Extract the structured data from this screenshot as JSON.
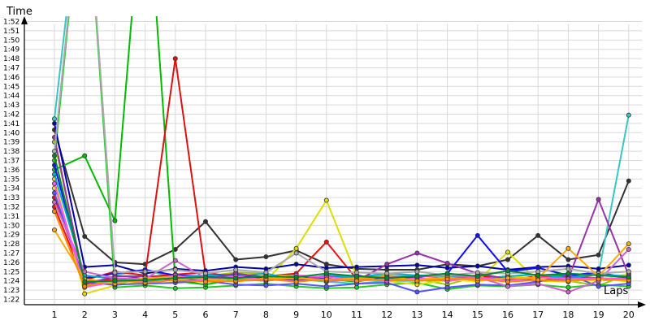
{
  "chart_data": {
    "type": "line",
    "xlabel": "Laps",
    "ylabel": "Time",
    "x": [
      1,
      2,
      3,
      4,
      5,
      6,
      7,
      8,
      9,
      10,
      11,
      12,
      13,
      14,
      15,
      16,
      17,
      18,
      19,
      20
    ],
    "x_tick_labels": [
      "1",
      "2",
      "3",
      "4",
      "5",
      "6",
      "7",
      "8",
      "9",
      "10",
      "11",
      "12",
      "13",
      "14",
      "15",
      "16",
      "17",
      "18",
      "19",
      "20"
    ],
    "y_unit": "seconds",
    "ylim": [
      80,
      113
    ],
    "y_tick_labels": [
      "1:22",
      "1:23",
      "1:24",
      "1:25",
      "1:26",
      "1:27",
      "1:28",
      "1:29",
      "1:30",
      "1:31",
      "1:32",
      "1:33",
      "1:34",
      "1:35",
      "1:36",
      "1:37",
      "1:38",
      "1:39",
      "1:40",
      "1:41",
      "1:42",
      "1:43",
      "1:44",
      "1:45",
      "1:46",
      "1:47",
      "1:48",
      "1:49",
      "1:50",
      "1:51",
      "1:52"
    ],
    "y_tick_values": [
      82,
      83,
      84,
      85,
      86,
      87,
      88,
      89,
      90,
      91,
      92,
      93,
      94,
      95,
      96,
      97,
      98,
      99,
      100,
      101,
      102,
      103,
      104,
      105,
      106,
      107,
      108,
      109,
      110,
      111,
      112
    ],
    "grid": true,
    "series": [
      {
        "color": "#333333",
        "values": [
          100.3,
          88.8,
          86.0,
          85.8,
          87.4,
          90.4,
          86.3,
          86.6,
          87.3,
          85.8,
          85.3,
          85.2,
          85.2,
          85.8,
          85.6,
          86.3,
          88.9,
          86.3,
          86.8,
          94.8
        ]
      },
      {
        "color": "#39c6c6",
        "values": [
          101.5,
          130,
          84.6,
          85.2,
          84.3,
          84.1,
          84.0,
          84.1,
          84.2,
          83.9,
          83.7,
          84.0,
          84.0,
          84.2,
          84.1,
          84.3,
          84.2,
          84.5,
          84.7,
          101.9
        ]
      },
      {
        "color": "#99cc00",
        "values": [
          99.0,
          84.0,
          83.5,
          84.5,
          84.5,
          84.5,
          84.9,
          84.8,
          84.1,
          84.0,
          84.3,
          84.6,
          84.2,
          83.6,
          84.5,
          84.2,
          84.5,
          84.0,
          83.5,
          84.7
        ]
      },
      {
        "color": "#22cc22",
        "values": [
          97.0,
          130,
          83.3,
          83.5,
          83.2,
          83.3,
          83.5,
          83.7,
          83.4,
          83.2,
          83.3,
          83.6,
          83.8,
          83.1,
          83.5,
          83.4,
          83.6,
          83.3,
          83.6,
          83.4
        ]
      },
      {
        "color": "#00bb00",
        "values": [
          96.0,
          97.5,
          90.5,
          130,
          84.0,
          83.6,
          84.2,
          84.4,
          84.6,
          84.2,
          83.9,
          84.5,
          84.0,
          84.3,
          84.3,
          84.0,
          84.4,
          84.7,
          84.2,
          84.3
        ]
      },
      {
        "color": "#ee1111",
        "values": [
          92.0,
          83.9,
          84.2,
          84.4,
          84.7,
          84.9,
          84.4,
          84.5,
          84.8,
          88.2,
          84.2,
          84.4,
          84.4,
          84.3,
          84.6,
          84.1,
          84.5,
          84.2,
          84.1,
          84.2
        ]
      },
      {
        "color": "#dd1111",
        "values": [
          93.0,
          84.1,
          85.0,
          84.6,
          108.0,
          84.7,
          84.3,
          84.1,
          84.3,
          84.5,
          84.4,
          84.3,
          84.2,
          84.0,
          84.3,
          84.4,
          84.0,
          84.5,
          84.3,
          84.0
        ]
      },
      {
        "color": "#dddd00",
        "values": [
          95.0,
          82.6,
          83.5,
          83.9,
          84.2,
          84.1,
          84.3,
          84.0,
          87.5,
          92.7,
          84.5,
          84.0,
          83.6,
          84.1,
          84.0,
          87.1,
          84.0,
          83.9,
          84.3,
          83.9
        ]
      },
      {
        "color": "#eeee00",
        "values": [
          94.0,
          83.5,
          83.8,
          84.4,
          83.9,
          84.5,
          84.1,
          84.6,
          84.5,
          84.3,
          84.6,
          84.1,
          84.4,
          84.2,
          83.9,
          84.6,
          84.2,
          84.1,
          84.0,
          84.8
        ]
      },
      {
        "color": "#0000aa",
        "values": [
          101.0,
          85.5,
          85.7,
          84.8,
          85.3,
          85.1,
          85.5,
          85.3,
          85.8,
          85.4,
          85.5,
          85.6,
          85.7,
          85.4,
          85.6,
          85.2,
          85.5,
          85.6,
          85.3,
          85.7
        ]
      },
      {
        "color": "#1111ee",
        "values": [
          96.5,
          84.3,
          84.8,
          85.2,
          84.6,
          84.5,
          84.7,
          84.2,
          84.5,
          84.3,
          84.6,
          84.1,
          84.4,
          84.8,
          88.9,
          85.0,
          85.4,
          84.6,
          84.9,
          84.3
        ]
      },
      {
        "color": "#5555ff",
        "values": [
          93.5,
          83.8,
          83.6,
          83.7,
          83.8,
          84.0,
          83.6,
          83.5,
          83.7,
          83.4,
          83.7,
          83.8,
          82.8,
          83.3,
          83.6,
          83.5,
          83.9,
          84.7,
          83.4,
          83.7
        ]
      },
      {
        "color": "#00aadd",
        "values": [
          95.5,
          84.6,
          84.2,
          83.9,
          84.4,
          84.6,
          84.5,
          84.8,
          84.1,
          84.6,
          84.4,
          84.8,
          84.6,
          84.5,
          84.2,
          84.5,
          84.7,
          84.3,
          84.7,
          84.5
        ]
      },
      {
        "color": "#9933aa",
        "values": [
          99.5,
          83.6,
          84.5,
          84.5,
          84.0,
          84.2,
          84.8,
          84.4,
          84.0,
          84.5,
          84.0,
          85.8,
          87.0,
          85.9,
          84.8,
          84.2,
          84.0,
          84.2,
          92.8,
          84.6
        ]
      },
      {
        "color": "#cc66cc",
        "values": [
          92.5,
          85.0,
          84.3,
          84.2,
          86.2,
          84.3,
          84.2,
          84.0,
          84.4,
          84.0,
          84.1,
          84.5,
          84.5,
          84.6,
          84.4,
          83.4,
          83.7,
          82.8,
          84.0,
          87.4
        ]
      },
      {
        "color": "#ff55ff",
        "values": [
          94.5,
          83.3,
          83.9,
          84.0,
          84.6,
          84.0,
          84.5,
          84.1,
          84.6,
          84.4,
          84.2,
          84.0,
          84.3,
          84.0,
          84.4,
          84.0,
          84.4,
          84.2,
          84.3,
          84.2
        ]
      },
      {
        "color": "#aaaaaa",
        "values": [
          98.0,
          130,
          84.9,
          85.0,
          85.2,
          84.8,
          85.2,
          84.9,
          87.0,
          85.0,
          84.9,
          84.8,
          85.0,
          84.6,
          84.9,
          84.8,
          85.0,
          85.3,
          84.8,
          85.0
        ]
      },
      {
        "color": "#ffaa00",
        "values": [
          89.5,
          84.2,
          83.7,
          84.3,
          84.4,
          84.2,
          83.9,
          84.3,
          84.3,
          84.1,
          84.3,
          84.4,
          84.1,
          84.4,
          84.0,
          84.3,
          84.3,
          87.5,
          84.5,
          88.0
        ]
      },
      {
        "color": "#ff8800",
        "values": [
          91.5,
          83.4,
          84.1,
          83.8,
          84.1,
          83.9,
          84.0,
          84.2,
          83.9,
          84.2,
          84.0,
          84.2,
          84.0,
          84.2,
          84.2,
          83.9,
          84.1,
          84.0,
          84.2,
          84.1
        ]
      },
      {
        "color": "#008833",
        "values": [
          97.5,
          83.9,
          84.0,
          84.1,
          84.3,
          84.4,
          84.3,
          84.5,
          84.4,
          84.8,
          84.5,
          84.3,
          84.5,
          84.8,
          84.5,
          85.1,
          84.6,
          84.8,
          84.6,
          84.4
        ]
      }
    ]
  }
}
